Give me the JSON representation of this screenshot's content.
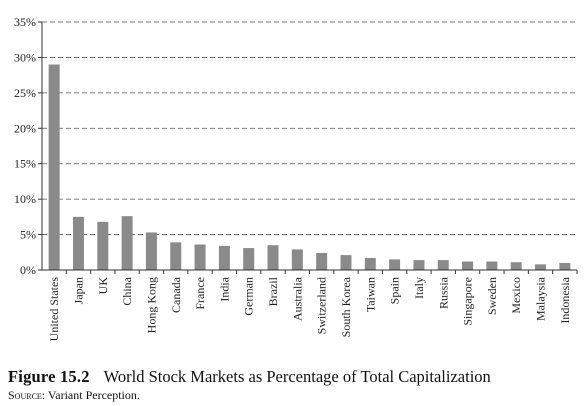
{
  "figure": {
    "label": "Figure 15.2",
    "title": "World Stock Markets as Percentage of Total Capitalization",
    "source_label": "Source:",
    "source_text": "Variant Perception."
  },
  "chart_data": {
    "type": "bar",
    "categories": [
      "United States",
      "Japan",
      "UK",
      "China",
      "Hong Kong",
      "Canada",
      "France",
      "India",
      "German",
      "Brazil",
      "Australia",
      "Switzerland",
      "South Korea",
      "Taiwan",
      "Spain",
      "Italy",
      "Russia",
      "Singapore",
      "Sweden",
      "Mexico",
      "Malaysia",
      "Indonesia"
    ],
    "series": [
      {
        "values": [
          29.0,
          7.5,
          6.8,
          7.6,
          5.3,
          3.9,
          3.6,
          3.4,
          3.1,
          3.5,
          2.9,
          2.4,
          2.1,
          1.7,
          1.5,
          1.4,
          1.4,
          1.2,
          1.2,
          1.1,
          0.8,
          1.0
        ]
      }
    ],
    "ylim": [
      0,
      35
    ],
    "y_ticks": [
      "0%",
      "5%",
      "10%",
      "15%",
      "20%",
      "25%",
      "30%",
      "35%"
    ],
    "y_tick_values": [
      0,
      5,
      10,
      15,
      20,
      25,
      30,
      35
    ],
    "grid": "horizontal dashed",
    "bar_color": "#8a8a8a",
    "xlabel": "",
    "ylabel": ""
  }
}
